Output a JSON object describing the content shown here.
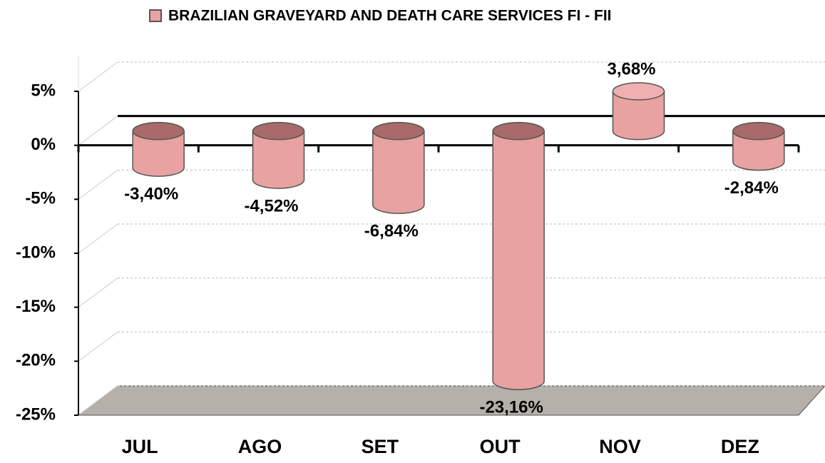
{
  "chart_data": {
    "type": "bar",
    "categories": [
      "JUL",
      "AGO",
      "SET",
      "OUT",
      "NOV",
      "DEZ"
    ],
    "series": [
      {
        "name": "BRAZILIAN GRAVEYARD AND DEATH CARE SERVICES FI - FII",
        "color": "#e8a2a2",
        "values": [
          -3.4,
          -4.52,
          -6.84,
          -23.16,
          3.68,
          -2.84
        ],
        "value_labels": [
          "-3,40%",
          "-4,52%",
          "-6,84%",
          "-23,16%",
          "3,68%",
          "-2,84%"
        ]
      }
    ],
    "ylim": [
      -25,
      5
    ],
    "yticks": [
      {
        "value": -25,
        "label": "-25%"
      },
      {
        "value": -20,
        "label": "-20%"
      },
      {
        "value": -15,
        "label": "-15%"
      },
      {
        "value": -10,
        "label": "-10%"
      },
      {
        "value": -5,
        "label": "-5%"
      },
      {
        "value": 0,
        "label": "0%"
      },
      {
        "value": 5,
        "label": "5%"
      }
    ],
    "grid": true
  }
}
